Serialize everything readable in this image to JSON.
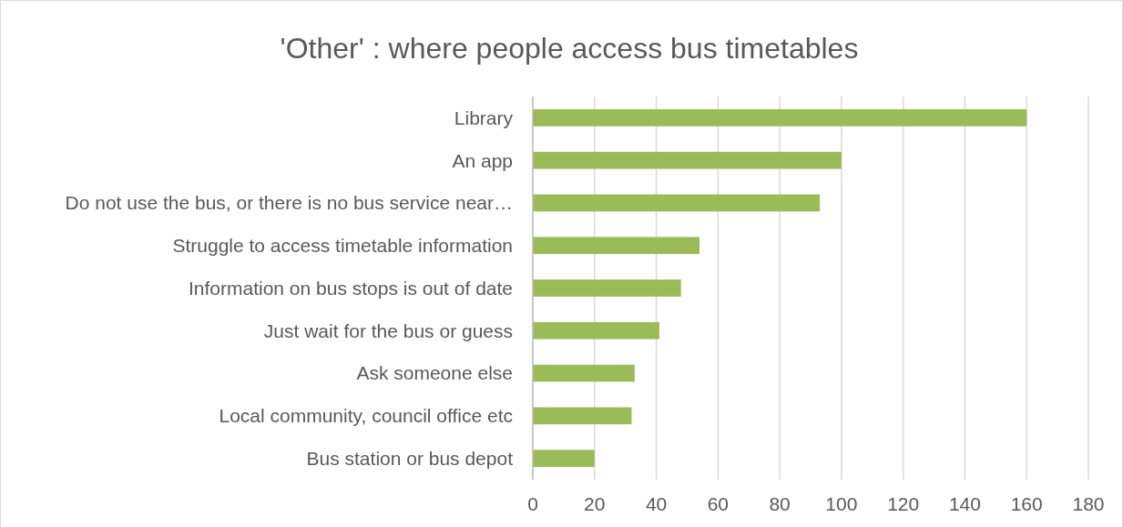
{
  "chart_data": {
    "type": "bar",
    "orientation": "horizontal",
    "title": "'Other' : where people access bus timetables",
    "categories": [
      "Library",
      "An app",
      "Do not use the bus, or there is no bus service near…",
      "Struggle to access timetable information",
      "Information on bus stops is out of date",
      "Just wait for the bus or guess",
      "Ask someone else",
      "Local community, council office etc",
      "Bus station or bus depot"
    ],
    "values": [
      160,
      100,
      93,
      54,
      48,
      41,
      33,
      32,
      20
    ],
    "color": "#9bbb59",
    "xlim": [
      0,
      180
    ],
    "xticks": [
      0,
      20,
      40,
      60,
      80,
      100,
      120,
      140,
      160,
      180
    ],
    "grid": "x"
  }
}
